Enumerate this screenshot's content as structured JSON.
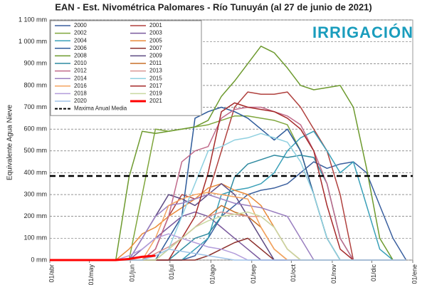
{
  "chart_data": {
    "type": "line",
    "title": "EAN - Est. Nivométrica Palomares - Río Tunuyán (al 27 de junio de 2021)",
    "logo": "IRRIGACIÓN",
    "y_label": "Equivalente Agua Nieve",
    "x": [
      0,
      10,
      20,
      30,
      40,
      50,
      60,
      70,
      80,
      90,
      100,
      110,
      120,
      130,
      140,
      150,
      160,
      170,
      180,
      190,
      200,
      210,
      220,
      230,
      240,
      250,
      260,
      270
    ],
    "xlim": [
      0,
      275
    ],
    "xticks": [
      {
        "value": 0,
        "label": "01/abr"
      },
      {
        "value": 30,
        "label": "01/may"
      },
      {
        "value": 61,
        "label": "01/jun"
      },
      {
        "value": 91,
        "label": "01/jul"
      },
      {
        "value": 122,
        "label": "01/ago"
      },
      {
        "value": 153,
        "label": "01/sep"
      },
      {
        "value": 183,
        "label": "01/oct"
      },
      {
        "value": 214,
        "label": "01/nov"
      },
      {
        "value": 244,
        "label": "01/dic"
      },
      {
        "value": 275,
        "label": "01/ene"
      }
    ],
    "ylim": [
      0,
      1100
    ],
    "yticks": [
      {
        "value": 0,
        "label": "0 mm"
      },
      {
        "value": 100,
        "label": "100 mm"
      },
      {
        "value": 200,
        "label": "200 mm"
      },
      {
        "value": 300,
        "label": "300 mm"
      },
      {
        "value": 400,
        "label": "400 mm"
      },
      {
        "value": 500,
        "label": "500 mm"
      },
      {
        "value": 600,
        "label": "600 mm"
      },
      {
        "value": 700,
        "label": "700 mm"
      },
      {
        "value": 800,
        "label": "800 mm"
      },
      {
        "value": 900,
        "label": "900 mm"
      },
      {
        "value": 1000,
        "label": "1 000 mm"
      },
      {
        "value": 1100,
        "label": "1 100 mm"
      }
    ],
    "grid": true,
    "legend": "upper left",
    "median": {
      "name": "Maxima Anual Media",
      "value": 385,
      "color": "#000000"
    },
    "series": [
      {
        "name": "2000",
        "color": "#3a5f9e",
        "values": [
          0,
          0,
          0,
          0,
          0,
          0,
          0,
          0,
          0,
          0,
          0,
          20,
          100,
          200,
          250,
          300,
          320,
          330,
          350,
          400,
          450,
          420,
          440,
          450,
          400,
          250,
          100,
          0
        ]
      },
      {
        "name": "2001",
        "color": "#b0413e",
        "values": [
          0,
          0,
          0,
          0,
          0,
          0,
          0,
          0,
          50,
          200,
          300,
          280,
          300,
          500,
          700,
          770,
          760,
          760,
          770,
          700,
          600,
          500,
          300,
          0,
          0,
          0,
          0,
          0
        ]
      },
      {
        "name": "2002",
        "color": "#7fa63c",
        "values": [
          0,
          0,
          0,
          0,
          0,
          0,
          0,
          300,
          600,
          590,
          600,
          610,
          620,
          640,
          660,
          660,
          650,
          640,
          620,
          500,
          300,
          100,
          0,
          0,
          0,
          0,
          0,
          0
        ]
      },
      {
        "name": "2003",
        "color": "#7a5a9e",
        "values": [
          0,
          0,
          0,
          0,
          0,
          0,
          0,
          50,
          100,
          150,
          200,
          220,
          200,
          150,
          100,
          50,
          0,
          0,
          0,
          0,
          0,
          0,
          0,
          0,
          0,
          0,
          0,
          0
        ]
      },
      {
        "name": "2004",
        "color": "#3aa0b8",
        "values": [
          0,
          0,
          0,
          0,
          0,
          0,
          0,
          0,
          0,
          0,
          0,
          50,
          100,
          300,
          320,
          330,
          350,
          400,
          500,
          560,
          590,
          500,
          400,
          450,
          250,
          50,
          0,
          0
        ]
      },
      {
        "name": "2005",
        "color": "#e98a3a",
        "values": [
          0,
          0,
          0,
          0,
          0,
          0,
          50,
          120,
          150,
          200,
          240,
          280,
          330,
          350,
          320,
          300,
          250,
          150,
          50,
          0,
          0,
          0,
          0,
          0,
          0,
          0,
          0,
          0
        ]
      },
      {
        "name": "2006",
        "color": "#2d5a9a",
        "values": [
          0,
          0,
          0,
          0,
          0,
          0,
          0,
          0,
          0,
          100,
          200,
          650,
          680,
          700,
          680,
          650,
          600,
          550,
          600,
          500,
          300,
          100,
          0,
          0,
          0,
          0,
          0,
          0
        ]
      },
      {
        "name": "2007",
        "color": "#8b2e2a",
        "values": [
          0,
          0,
          0,
          0,
          0,
          0,
          0,
          0,
          0,
          0,
          0,
          0,
          20,
          50,
          80,
          100,
          50,
          0,
          0,
          0,
          0,
          0,
          0,
          0,
          0,
          0,
          0,
          0
        ]
      },
      {
        "name": "2008",
        "color": "#6d9a2e",
        "values": [
          0,
          0,
          0,
          0,
          0,
          0,
          380,
          590,
          580,
          590,
          600,
          610,
          640,
          750,
          820,
          900,
          980,
          950,
          880,
          800,
          780,
          790,
          800,
          700,
          420,
          100,
          0,
          0
        ]
      },
      {
        "name": "2009",
        "color": "#5e4a82",
        "values": [
          0,
          0,
          0,
          0,
          0,
          0,
          0,
          100,
          200,
          300,
          280,
          250,
          300,
          350,
          300,
          200,
          100,
          0,
          0,
          0,
          0,
          0,
          0,
          0,
          0,
          0,
          0,
          0
        ]
      },
      {
        "name": "2010",
        "color": "#2f8aa0",
        "values": [
          0,
          0,
          0,
          0,
          0,
          0,
          0,
          0,
          0,
          0,
          50,
          100,
          120,
          200,
          380,
          440,
          460,
          480,
          470,
          480,
          470,
          350,
          100,
          0,
          0,
          0,
          0,
          0
        ]
      },
      {
        "name": "2011",
        "color": "#c9712a",
        "values": [
          0,
          0,
          0,
          0,
          0,
          0,
          0,
          0,
          0,
          50,
          100,
          150,
          200,
          250,
          220,
          200,
          150,
          50,
          0,
          0,
          0,
          0,
          0,
          0,
          0,
          0,
          0,
          0
        ]
      },
      {
        "name": "2012",
        "color": "#c06a8a",
        "values": [
          0,
          0,
          0,
          0,
          0,
          0,
          0,
          0,
          50,
          200,
          450,
          500,
          520,
          650,
          690,
          700,
          700,
          680,
          660,
          620,
          500,
          350,
          100,
          0,
          0,
          0,
          0,
          0
        ]
      },
      {
        "name": "2013",
        "color": "#d99694",
        "values": [
          0,
          0,
          0,
          0,
          0,
          0,
          0,
          0,
          30,
          60,
          100,
          150,
          200,
          220,
          210,
          200,
          200,
          150,
          50,
          0,
          0,
          0,
          0,
          0,
          0,
          0,
          0,
          0
        ]
      },
      {
        "name": "2014",
        "color": "#9a7fc0",
        "values": [
          0,
          0,
          0,
          0,
          0,
          0,
          0,
          100,
          200,
          250,
          260,
          280,
          300,
          280,
          260,
          250,
          240,
          220,
          200,
          100,
          0,
          0,
          0,
          0,
          0,
          0,
          0,
          0
        ]
      },
      {
        "name": "2015",
        "color": "#8fd0e0",
        "values": [
          0,
          0,
          0,
          0,
          0,
          0,
          0,
          0,
          0,
          50,
          200,
          350,
          500,
          520,
          550,
          560,
          580,
          560,
          540,
          450,
          300,
          100,
          0,
          0,
          0,
          0,
          0,
          0
        ]
      },
      {
        "name": "2016",
        "color": "#f4a460",
        "values": [
          0,
          0,
          0,
          0,
          0,
          0,
          0,
          0,
          100,
          250,
          280,
          300,
          310,
          300,
          290,
          280,
          150,
          50,
          0,
          0,
          0,
          0,
          0,
          0,
          0,
          0,
          0,
          0
        ]
      },
      {
        "name": "2017",
        "color": "#a52a2a",
        "values": [
          0,
          0,
          0,
          0,
          0,
          0,
          0,
          0,
          0,
          0,
          100,
          200,
          400,
          680,
          720,
          700,
          690,
          680,
          650,
          600,
          500,
          250,
          50,
          0,
          0,
          0,
          0,
          0
        ]
      },
      {
        "name": "2018",
        "color": "#b39ddb",
        "values": [
          0,
          0,
          0,
          0,
          0,
          0,
          20,
          50,
          100,
          120,
          100,
          80,
          60,
          50,
          30,
          0,
          0,
          0,
          0,
          0,
          0,
          0,
          0,
          0,
          0,
          0,
          0,
          0
        ]
      },
      {
        "name": "2019",
        "color": "#c8d8a0",
        "values": [
          0,
          0,
          0,
          0,
          0,
          0,
          0,
          0,
          0,
          50,
          100,
          150,
          180,
          200,
          210,
          220,
          200,
          150,
          50,
          0,
          0,
          0,
          0,
          0,
          0,
          0,
          0,
          0
        ]
      },
      {
        "name": "2020",
        "color": "#a0c4e8",
        "values": [
          0,
          0,
          0,
          0,
          0,
          0,
          0,
          0,
          20,
          50,
          40,
          30,
          20,
          10,
          0,
          0,
          0,
          0,
          0,
          0,
          0,
          0,
          0,
          0,
          0,
          0,
          0,
          0
        ]
      },
      {
        "name": "2021",
        "color": "#ff0000",
        "width": 3,
        "values": [
          0,
          0,
          0,
          0,
          0,
          0,
          5,
          15,
          20,
          null,
          null,
          null,
          null,
          null,
          null,
          null,
          null,
          null,
          null,
          null,
          null,
          null,
          null,
          null,
          null,
          null,
          null,
          null
        ]
      }
    ]
  }
}
